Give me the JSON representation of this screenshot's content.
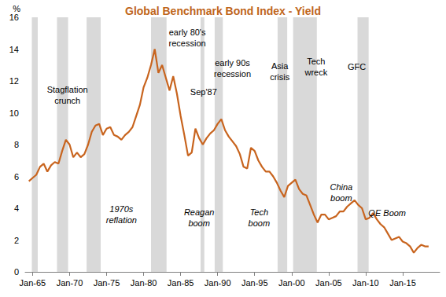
{
  "chart_data": {
    "type": "line",
    "title": "Global Benchmark Bond Index - Yield",
    "y_label": "%",
    "color": "#c8641e",
    "grid": false,
    "x": [
      1964.5,
      1965,
      1965.5,
      1966,
      1966.5,
      1967,
      1967.5,
      1968,
      1968.5,
      1969,
      1969.5,
      1970,
      1970.5,
      1971,
      1971.5,
      1972,
      1972.5,
      1973,
      1973.5,
      1974,
      1974.5,
      1975,
      1975.5,
      1976,
      1976.5,
      1977,
      1977.5,
      1978,
      1978.5,
      1979,
      1979.5,
      1980,
      1980.5,
      1981,
      1981.5,
      1982,
      1982.5,
      1983,
      1983.5,
      1984,
      1984.5,
      1985,
      1985.5,
      1986,
      1986.5,
      1987,
      1987.5,
      1988,
      1988.5,
      1989,
      1989.5,
      1990,
      1990.5,
      1991,
      1991.5,
      1992,
      1992.5,
      1993,
      1993.5,
      1994,
      1994.5,
      1995,
      1995.5,
      1996,
      1996.5,
      1997,
      1997.5,
      1998,
      1998.5,
      1999,
      1999.5,
      2000,
      2000.5,
      2001,
      2001.5,
      2002,
      2002.5,
      2003,
      2003.5,
      2004,
      2004.5,
      2005,
      2005.5,
      2006,
      2006.5,
      2007,
      2007.5,
      2008,
      2008.5,
      2009,
      2009.5,
      2010,
      2010.5,
      2011,
      2011.5,
      2012,
      2012.5,
      2013,
      2013.5,
      2014,
      2014.5,
      2015,
      2015.5,
      2016,
      2016.5,
      2017,
      2017.5,
      2018,
      2018.5
    ],
    "values": [
      5.7,
      5.9,
      6.1,
      6.6,
      6.8,
      6.3,
      6.7,
      6.9,
      6.8,
      7.6,
      8.3,
      8.0,
      7.2,
      7.5,
      7.2,
      7.4,
      8.0,
      8.8,
      9.2,
      9.3,
      8.6,
      9.0,
      9.1,
      8.6,
      8.5,
      8.3,
      8.6,
      8.8,
      9.1,
      9.8,
      10.5,
      11.6,
      12.2,
      13.0,
      14.0,
      12.5,
      13.0,
      12.2,
      11.4,
      12.3,
      11.2,
      9.8,
      8.6,
      7.3,
      7.5,
      9.0,
      8.4,
      8.0,
      8.4,
      8.7,
      8.9,
      9.3,
      9.6,
      8.9,
      8.5,
      8.2,
      7.9,
      7.4,
      6.6,
      6.5,
      7.8,
      7.6,
      7.0,
      6.6,
      6.3,
      6.3,
      6.0,
      5.6,
      5.1,
      4.7,
      5.4,
      5.6,
      5.8,
      5.2,
      4.9,
      4.8,
      4.2,
      3.6,
      3.1,
      3.6,
      3.6,
      3.3,
      3.4,
      3.5,
      3.8,
      3.8,
      4.1,
      4.3,
      4.5,
      4.2,
      4.0,
      3.3,
      3.4,
      3.7,
      3.3,
      3.0,
      2.8,
      2.4,
      2.0,
      2.1,
      2.2,
      1.9,
      1.8,
      1.6,
      1.2,
      1.5,
      1.7,
      1.6,
      1.6
    ],
    "xlim": [
      1964,
      2020
    ],
    "xticks": [
      {
        "value": 1965,
        "label": "Jan-65"
      },
      {
        "value": 1970,
        "label": "Jan-70"
      },
      {
        "value": 1975,
        "label": "Jan-75"
      },
      {
        "value": 1980,
        "label": "Jan-80"
      },
      {
        "value": 1985,
        "label": "Jan-85"
      },
      {
        "value": 1990,
        "label": "Jan-90"
      },
      {
        "value": 1995,
        "label": "Jan-95"
      },
      {
        "value": 2000,
        "label": "Jan-00"
      },
      {
        "value": 2005,
        "label": "Jan-05"
      },
      {
        "value": 2010,
        "label": "Jan-10"
      },
      {
        "value": 2015,
        "label": "Jan-15"
      }
    ],
    "ylim": [
      0,
      16
    ],
    "yticks": [
      0,
      2,
      4,
      6,
      8,
      10,
      12,
      14,
      16
    ],
    "shaded_periods": [
      {
        "start": 1964.9,
        "end": 1965.7
      },
      {
        "start": 1968.3,
        "end": 1969.8
      },
      {
        "start": 1972.3,
        "end": 1974.2
      },
      {
        "start": 1981.0,
        "end": 1983.1
      },
      {
        "start": 1987.7,
        "end": 1988.2
      },
      {
        "start": 1989.6,
        "end": 1990.7
      },
      {
        "start": 1998.1,
        "end": 1999.4
      },
      {
        "start": 2000.2,
        "end": 2003.4
      },
      {
        "start": 2008.9,
        "end": 2010.4
      }
    ],
    "event_labels": [
      {
        "text": "Stagflation\ncrunch",
        "x": 1969.7,
        "y": 11.1
      },
      {
        "text": "early 80's\nrecession",
        "x": 1985.9,
        "y": 14.7
      },
      {
        "text": "Sep'87",
        "x": 1988.1,
        "y": 11.3
      },
      {
        "text": "early 90s\nrecession",
        "x": 1992.0,
        "y": 12.8
      },
      {
        "text": "Asia\ncrisis",
        "x": 1998.4,
        "y": 12.6
      },
      {
        "text": "Tech\nwreck",
        "x": 2003.3,
        "y": 12.9
      },
      {
        "text": "GFC",
        "x": 2008.8,
        "y": 12.9
      }
    ],
    "phase_labels": [
      {
        "text": "1970s\nreflation",
        "x": 1977.0,
        "y": 3.6
      },
      {
        "text": "Reagan\nboom",
        "x": 1987.5,
        "y": 3.4
      },
      {
        "text": "Tech\nboom",
        "x": 1995.6,
        "y": 3.4
      },
      {
        "text": "China\nboom",
        "x": 2006.7,
        "y": 5.0
      },
      {
        "text": "QE Boom",
        "x": 2012.9,
        "y": 3.7
      }
    ]
  }
}
